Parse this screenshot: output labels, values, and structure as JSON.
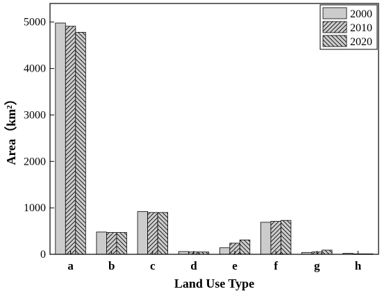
{
  "chart_data": {
    "type": "bar",
    "xlabel": "Land Use Type",
    "ylabel": "Area（km²）",
    "categories": [
      "a",
      "b",
      "c",
      "d",
      "e",
      "f",
      "g",
      "h"
    ],
    "series": [
      {
        "name": "2000",
        "values": [
          4980,
          480,
          920,
          60,
          140,
          690,
          40,
          20
        ],
        "pattern": "solid"
      },
      {
        "name": "2010",
        "values": [
          4910,
          470,
          900,
          50,
          240,
          710,
          50,
          10
        ],
        "pattern": "hatch-forward"
      },
      {
        "name": "2020",
        "values": [
          4780,
          470,
          900,
          50,
          310,
          730,
          90,
          10
        ],
        "pattern": "hatch-backward"
      }
    ],
    "ylim": [
      0,
      5400
    ],
    "yticks": [
      0,
      1000,
      2000,
      3000,
      4000,
      5000
    ],
    "legend_position": "top-right",
    "grid": false,
    "colors": {
      "bar_fill": "#cccccc",
      "bar_stroke": "#000000",
      "axis": "#000000",
      "background": "#ffffff"
    }
  }
}
